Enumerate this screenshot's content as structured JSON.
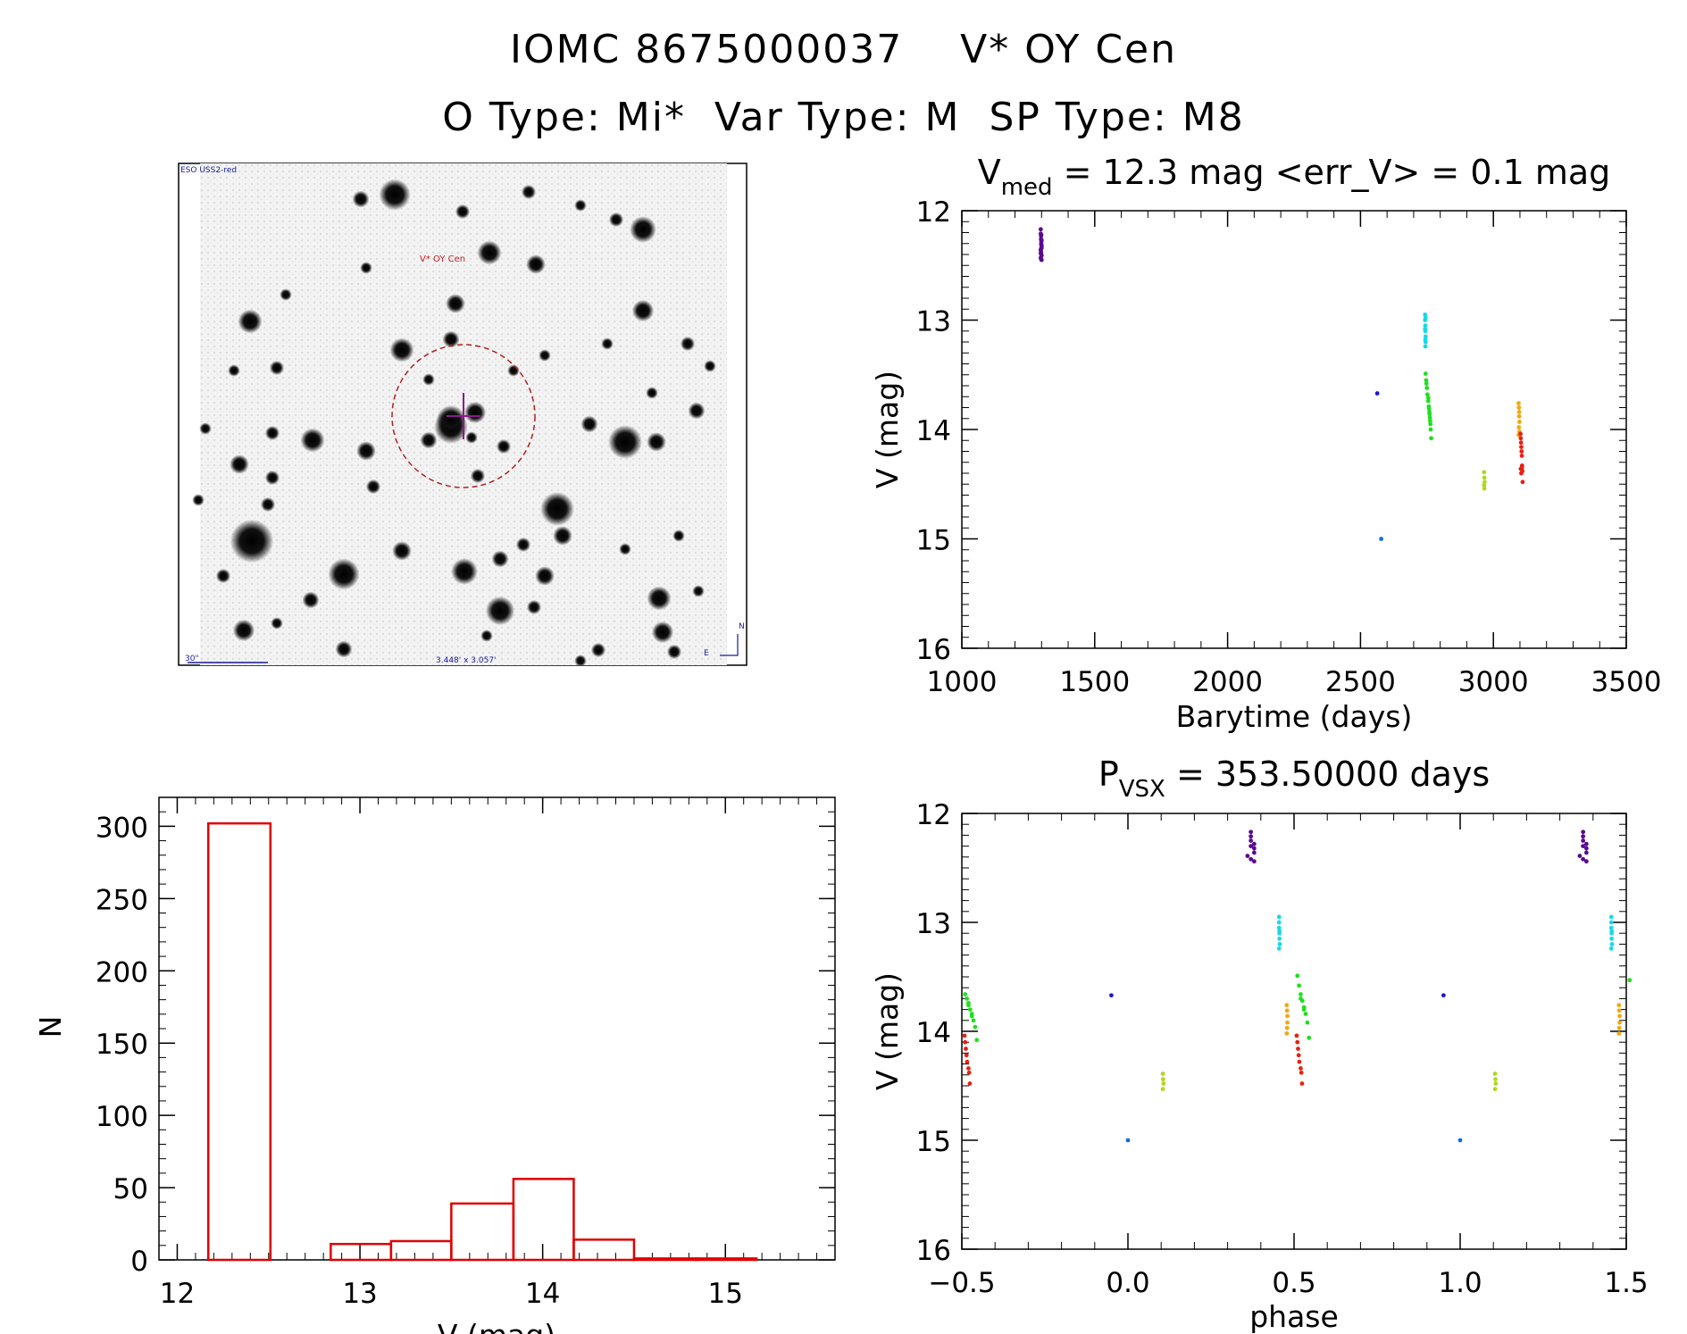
{
  "header": {
    "line1": "IOMC 8675000037    V* OY Cen",
    "line2": "O Type: Mi*  Var Type: M  SP Type: M8"
  },
  "finder": {
    "survey_label": "ESO USS2-red",
    "target_label": "V* OY Cen",
    "scale_label": "30\"",
    "fov_label": "3.448' x 3.057'",
    "east_label": "E",
    "north_label": "N"
  },
  "chart_data": [
    {
      "id": "lightcurve",
      "type": "scatter",
      "title_main": "V",
      "title_sub": "med",
      "title_rest": " = 12.3 mag <err_V> = 0.1 mag",
      "xlabel": "Barytime (days)",
      "ylabel": "V (mag)",
      "xlim": [
        1000,
        3500
      ],
      "ylim": [
        16,
        12
      ],
      "xticks": [
        1000,
        1500,
        2000,
        2500,
        3000,
        3500
      ],
      "yticks": [
        12,
        13,
        14,
        15,
        16
      ],
      "groups": [
        {
          "color": "#5a0a8c",
          "x": [
            1297,
            1297,
            1298,
            1298,
            1299,
            1299,
            1300,
            1300,
            1297,
            1298,
            1299,
            1300,
            1297,
            1298,
            1299,
            1300,
            1297,
            1298,
            1299,
            1300
          ],
          "y": [
            12.17,
            12.21,
            12.23,
            12.26,
            12.28,
            12.3,
            12.32,
            12.34,
            12.36,
            12.38,
            12.4,
            12.41,
            12.43,
            12.44,
            12.31,
            12.27,
            12.39,
            12.35,
            12.22,
            12.45
          ]
        },
        {
          "color": "#1a1ad0",
          "x": [
            2563
          ],
          "y": [
            13.67
          ]
        },
        {
          "color": "#1a6ae0",
          "x": [
            2578
          ],
          "y": [
            15.0
          ]
        },
        {
          "color": "#18d8e8",
          "x": [
            2743,
            2743,
            2744,
            2744,
            2745,
            2745,
            2744,
            2743,
            2745,
            2744
          ],
          "y": [
            12.95,
            13.0,
            13.05,
            13.1,
            13.15,
            13.2,
            13.24,
            13.08,
            12.98,
            13.18
          ]
        },
        {
          "color": "#1ee01e",
          "x": [
            2745,
            2747,
            2750,
            2752,
            2755,
            2757,
            2759,
            2761,
            2763,
            2764,
            2766,
            2755,
            2758,
            2762,
            2748,
            2760
          ],
          "y": [
            13.49,
            13.55,
            13.62,
            13.68,
            13.74,
            13.79,
            13.84,
            13.89,
            13.95,
            14.0,
            14.08,
            13.71,
            13.81,
            13.92,
            13.58,
            13.86
          ]
        },
        {
          "color": "#b0d820",
          "x": [
            2965,
            2966,
            2967,
            2965,
            2966
          ],
          "y": [
            14.39,
            14.44,
            14.48,
            14.51,
            14.54
          ]
        },
        {
          "color": "#f0a810",
          "x": [
            3095,
            3096,
            3097,
            3097,
            3098,
            3096,
            3098,
            3095
          ],
          "y": [
            13.76,
            13.8,
            13.84,
            13.88,
            13.93,
            13.98,
            14.02,
            14.05
          ]
        },
        {
          "color": "#e82010",
          "x": [
            3102,
            3103,
            3104,
            3105,
            3106,
            3107,
            3108,
            3103,
            3105,
            3107,
            3109,
            3110
          ],
          "y": [
            14.04,
            14.08,
            14.12,
            14.16,
            14.2,
            14.24,
            14.33,
            14.36,
            14.4,
            14.35,
            14.38,
            14.48
          ]
        }
      ]
    },
    {
      "id": "histogram",
      "type": "bar",
      "title": "",
      "xlabel": "V (mag)",
      "ylabel": "N",
      "xlim": [
        11.9,
        15.6
      ],
      "ylim": [
        0,
        320
      ],
      "xticks": [
        12,
        13,
        14,
        15
      ],
      "yticks": [
        0,
        50,
        100,
        150,
        200,
        250,
        300
      ],
      "bin_edges": [
        12.17,
        12.51,
        12.84,
        13.17,
        13.5,
        13.84,
        14.17,
        14.5,
        14.84,
        15.17
      ],
      "values": [
        302,
        0,
        11,
        13,
        39,
        56,
        14,
        1,
        1
      ],
      "color": "#e00000"
    },
    {
      "id": "phased",
      "type": "scatter",
      "title_main": "P",
      "title_sub": "VSX",
      "title_rest": " = 353.50000 days",
      "xlabel": "phase",
      "ylabel": "V (mag)",
      "xlim": [
        -0.5,
        1.5
      ],
      "ylim": [
        16,
        12
      ],
      "xticks": [
        -0.5,
        0.0,
        0.5,
        1.0,
        1.5
      ],
      "xticklabels": [
        "−0.5",
        "0.0",
        "0.5",
        "1.0",
        "1.5"
      ],
      "yticks": [
        12,
        13,
        14,
        15,
        16
      ],
      "groups": [
        {
          "color": "#5a0a8c",
          "x": [
            0.37,
            0.37,
            0.37,
            0.38,
            0.38,
            0.38,
            0.36,
            0.37,
            0.38,
            0.37,
            1.37,
            1.37,
            1.37,
            1.38,
            1.38,
            1.38,
            1.36,
            1.37,
            1.38,
            1.37
          ],
          "y": [
            12.17,
            12.21,
            12.25,
            12.28,
            12.32,
            12.36,
            12.39,
            12.42,
            12.44,
            12.3,
            12.17,
            12.21,
            12.25,
            12.28,
            12.32,
            12.36,
            12.39,
            12.42,
            12.44,
            12.3
          ]
        },
        {
          "color": "#1a1ad0",
          "x": [
            -0.05,
            0.95
          ],
          "y": [
            13.67,
            13.67
          ]
        },
        {
          "color": "#1a6ae0",
          "x": [
            0.0,
            1.0
          ],
          "y": [
            15.0,
            15.0
          ]
        },
        {
          "color": "#18d8e8",
          "x": [
            0.455,
            0.455,
            0.455,
            0.456,
            0.456,
            0.457,
            0.455,
            0.456,
            1.455,
            1.455,
            1.455,
            1.456,
            1.456,
            1.457,
            1.455,
            1.456
          ],
          "y": [
            12.95,
            13.0,
            13.05,
            13.1,
            13.15,
            13.2,
            13.24,
            13.08,
            12.95,
            13.0,
            13.05,
            13.1,
            13.15,
            13.2,
            13.24,
            13.08
          ]
        },
        {
          "color": "#1ee01e",
          "x": [
            0.51,
            0.515,
            0.52,
            0.525,
            0.53,
            0.535,
            0.54,
            0.52,
            0.53,
            0.545,
            -0.49,
            -0.485,
            -0.48,
            -0.475,
            -0.47,
            -0.465,
            -0.46,
            -0.48,
            -0.47,
            -0.455,
            1.51
          ],
          "y": [
            13.49,
            13.58,
            13.66,
            13.72,
            13.78,
            13.84,
            13.92,
            13.7,
            13.8,
            14.06,
            13.66,
            13.7,
            13.74,
            13.8,
            13.86,
            13.9,
            13.96,
            13.76,
            13.84,
            14.08,
            13.53
          ]
        },
        {
          "color": "#b0d820",
          "x": [
            0.105,
            0.106,
            0.107,
            0.105,
            1.105,
            1.106,
            1.107,
            1.105
          ],
          "y": [
            14.39,
            14.44,
            14.48,
            14.53,
            14.39,
            14.44,
            14.48,
            14.53
          ]
        },
        {
          "color": "#f0a810",
          "x": [
            0.478,
            0.479,
            0.48,
            0.48,
            0.479,
            0.478,
            1.478,
            1.479,
            1.48,
            1.48,
            1.479,
            1.478
          ],
          "y": [
            13.76,
            13.81,
            13.86,
            13.92,
            13.97,
            14.02,
            13.76,
            13.81,
            13.86,
            13.92,
            13.97,
            14.02
          ]
        },
        {
          "color": "#e82010",
          "x": [
            -0.492,
            -0.49,
            -0.488,
            -0.486,
            -0.484,
            -0.48,
            -0.478,
            -0.476,
            0.508,
            0.51,
            0.512,
            0.514,
            0.516,
            0.52,
            0.522,
            0.524
          ],
          "y": [
            14.04,
            14.1,
            14.16,
            14.22,
            14.28,
            14.34,
            14.38,
            14.48,
            14.04,
            14.1,
            14.16,
            14.22,
            14.28,
            14.34,
            14.38,
            14.48
          ]
        }
      ]
    }
  ]
}
